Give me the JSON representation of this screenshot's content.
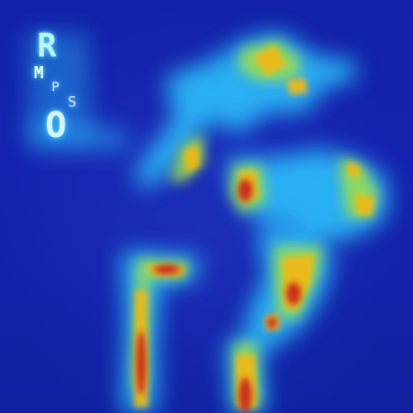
{
  "image": {
    "kind": "heatmap overlay on photograph",
    "colormap": "jet",
    "palette": {
      "low": "#1224a8",
      "mid": "#2ec8ff",
      "warm": "#e8c21c",
      "high": "#c0281a"
    }
  },
  "logo": {
    "letter_r": "R",
    "letter_m": "M",
    "letter_p": "P",
    "letter_s": "S",
    "letter_o": "O"
  }
}
